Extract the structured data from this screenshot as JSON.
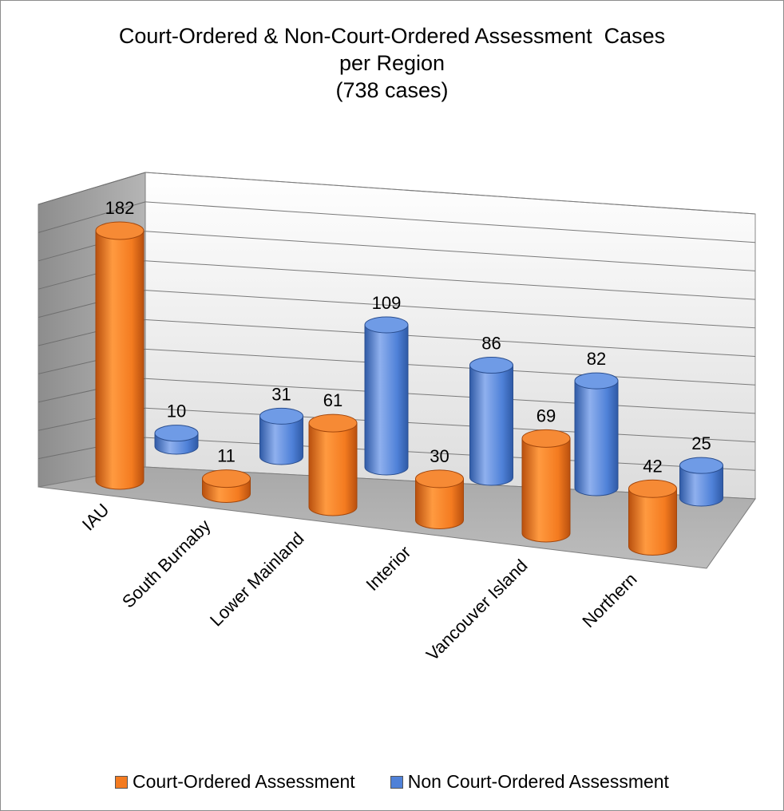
{
  "chart_data": {
    "type": "bar",
    "style": "3d-cylinder",
    "title_lines": [
      "Court-Ordered & Non-Court-Ordered Assessment  Cases",
      "per Region",
      "(738 cases)"
    ],
    "categories": [
      "IAU",
      "South Burnaby",
      "Lower Mainland",
      "Interior",
      "Vancouver Island",
      "Northern"
    ],
    "series": [
      {
        "name": "Court-Ordered Assessment",
        "values": [
          182,
          11,
          61,
          30,
          69,
          42
        ],
        "color": "#f47b20"
      },
      {
        "name": "Non Court-Ordered Assessment",
        "values": [
          10,
          31,
          109,
          86,
          82,
          25
        ],
        "color": "#4f81d8"
      }
    ],
    "ylim": [
      0,
      200
    ],
    "grid": true,
    "legend_position": "bottom"
  }
}
